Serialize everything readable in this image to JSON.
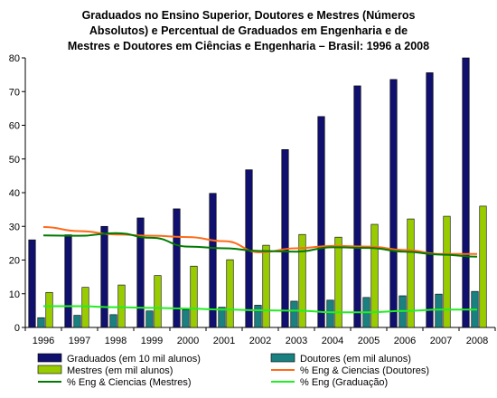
{
  "chart_data": {
    "type": "bar",
    "title_lines": [
      "Graduados no Ensino Superior, Doutores e Mestres (Números",
      "Absolutos) e Percentual de Graduados em Engenharia e de",
      "Mestres e Doutores em Ciências e Engenharia – Brasil: 1996 a 2008"
    ],
    "categories": [
      "1996",
      "1997",
      "1998",
      "1999",
      "2000",
      "2001",
      "2002",
      "2003",
      "2004",
      "2005",
      "2006",
      "2007",
      "2008"
    ],
    "ylim": [
      0,
      80
    ],
    "yticks": [
      0,
      10,
      20,
      30,
      40,
      50,
      60,
      70,
      80
    ],
    "grid": false,
    "legend_position": "bottom",
    "bar_series": [
      {
        "name": "Graduados (em 10 mil alunos)",
        "color": "#10106e",
        "values": [
          26,
          27.5,
          30,
          32.5,
          35.2,
          39.8,
          46.8,
          52.8,
          62.6,
          71.7,
          73.6,
          75.6,
          80
        ]
      },
      {
        "name": "Mestres (em mil alunos)",
        "color": "#99cc00",
        "values": [
          10.4,
          11.9,
          12.6,
          15.4,
          18.2,
          20.1,
          24.4,
          27.6,
          26.8,
          30.6,
          32.2,
          33,
          36
        ]
      },
      {
        "name": "Doutores (em mil alunos)",
        "color": "#1a8080",
        "values": [
          2.9,
          3.6,
          3.8,
          4.9,
          5.3,
          6.0,
          6.6,
          7.8,
          8.1,
          8.9,
          9.4,
          9.9,
          10.7
        ]
      }
    ],
    "line_series": [
      {
        "name": "% Eng & Ciencias (Doutores)",
        "color": "#ff6a1a",
        "values": [
          29.8,
          28.6,
          27.6,
          27.2,
          26.8,
          25.6,
          22.3,
          23.5,
          24.2,
          24.0,
          23.0,
          21.8,
          21.8
        ]
      },
      {
        "name": "% Eng & Ciencias (Mestres)",
        "color": "#007a00",
        "values": [
          27.3,
          27.2,
          28.0,
          26.6,
          24.0,
          23.5,
          22.7,
          22.5,
          23.8,
          23.6,
          22.5,
          21.6,
          21.0
        ]
      },
      {
        "name": "% Eng (Graduação)",
        "color": "#22ee22",
        "values": [
          6.3,
          6.3,
          6.0,
          5.8,
          5.6,
          5.3,
          5.1,
          5.0,
          4.5,
          4.5,
          4.9,
          5.3,
          5.3
        ]
      }
    ],
    "legend": [
      {
        "name": "Graduados (em 10 mil alunos)",
        "kind": "box",
        "color": "#10106e"
      },
      {
        "name": "Doutores (em mil alunos)",
        "kind": "box",
        "color": "#1a8080"
      },
      {
        "name": "Mestres (em mil alunos)",
        "kind": "box",
        "color": "#99cc00"
      },
      {
        "name": "% Eng & Ciencias (Doutores)",
        "kind": "line",
        "color": "#ff6a1a"
      },
      {
        "name": "% Eng & Ciencias (Mestres)",
        "kind": "line",
        "color": "#007a00"
      },
      {
        "name": "% Eng (Graduação)",
        "kind": "line",
        "color": "#22ee22"
      }
    ]
  }
}
